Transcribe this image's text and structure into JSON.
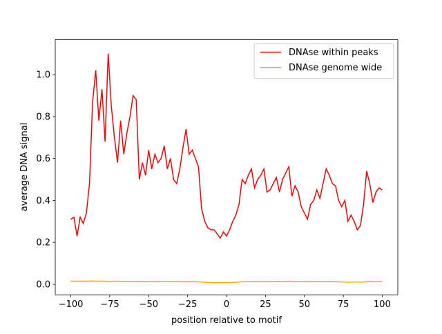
{
  "chart_data": {
    "type": "line",
    "xlabel": "position relative to motif",
    "ylabel": "average DNA signal",
    "x": [
      -100,
      -98,
      -96,
      -94,
      -92,
      -90,
      -88,
      -86,
      -84,
      -82,
      -80,
      -78,
      -76,
      -74,
      -72,
      -70,
      -68,
      -66,
      -64,
      -62,
      -60,
      -58,
      -56,
      -54,
      -52,
      -50,
      -48,
      -46,
      -44,
      -42,
      -40,
      -38,
      -36,
      -34,
      -32,
      -30,
      -28,
      -26,
      -24,
      -22,
      -20,
      -18,
      -16,
      -14,
      -12,
      -10,
      -8,
      -6,
      -4,
      -2,
      0,
      2,
      4,
      6,
      8,
      10,
      12,
      14,
      16,
      18,
      20,
      22,
      24,
      26,
      28,
      30,
      32,
      34,
      36,
      38,
      40,
      42,
      44,
      46,
      48,
      50,
      52,
      54,
      56,
      58,
      60,
      62,
      64,
      66,
      68,
      70,
      72,
      74,
      76,
      78,
      80,
      82,
      84,
      86,
      88,
      90,
      92,
      94,
      96,
      98,
      100
    ],
    "series": [
      {
        "name": "DNAse within peaks",
        "color": "#ff0000",
        "values": [
          0.31,
          0.32,
          0.23,
          0.32,
          0.29,
          0.34,
          0.48,
          0.87,
          1.02,
          0.78,
          0.93,
          0.68,
          1.1,
          0.85,
          0.7,
          0.58,
          0.78,
          0.62,
          0.72,
          0.8,
          0.9,
          0.88,
          0.5,
          0.58,
          0.52,
          0.64,
          0.55,
          0.62,
          0.58,
          0.6,
          0.66,
          0.55,
          0.6,
          0.5,
          0.48,
          0.55,
          0.65,
          0.74,
          0.62,
          0.64,
          0.6,
          0.56,
          0.36,
          0.3,
          0.27,
          0.26,
          0.26,
          0.24,
          0.22,
          0.25,
          0.23,
          0.26,
          0.3,
          0.33,
          0.38,
          0.5,
          0.48,
          0.52,
          0.55,
          0.46,
          0.5,
          0.52,
          0.55,
          0.44,
          0.45,
          0.48,
          0.51,
          0.44,
          0.5,
          0.53,
          0.56,
          0.42,
          0.47,
          0.44,
          0.37,
          0.34,
          0.31,
          0.38,
          0.4,
          0.45,
          0.41,
          0.48,
          0.55,
          0.52,
          0.48,
          0.47,
          0.4,
          0.37,
          0.4,
          0.3,
          0.33,
          0.3,
          0.26,
          0.28,
          0.38,
          0.54,
          0.48,
          0.39,
          0.44,
          0.46,
          0.45
        ]
      },
      {
        "name": "DNAse genome wide",
        "color": "#ffa500",
        "values": [
          0.015,
          0.015,
          0.015,
          0.015,
          0.015,
          0.015,
          0.015,
          0.016,
          0.015,
          0.015,
          0.015,
          0.015,
          0.014,
          0.014,
          0.015,
          0.015,
          0.014,
          0.014,
          0.014,
          0.014,
          0.014,
          0.014,
          0.014,
          0.014,
          0.014,
          0.014,
          0.013,
          0.013,
          0.014,
          0.013,
          0.013,
          0.013,
          0.013,
          0.013,
          0.013,
          0.013,
          0.012,
          0.012,
          0.013,
          0.013,
          0.012,
          0.012,
          0.011,
          0.01,
          0.009,
          0.008,
          0.008,
          0.008,
          0.008,
          0.008,
          0.008,
          0.008,
          0.009,
          0.01,
          0.011,
          0.012,
          0.013,
          0.013,
          0.014,
          0.014,
          0.014,
          0.013,
          0.013,
          0.014,
          0.014,
          0.013,
          0.014,
          0.014,
          0.013,
          0.014,
          0.015,
          0.014,
          0.014,
          0.014,
          0.013,
          0.014,
          0.014,
          0.013,
          0.013,
          0.014,
          0.014,
          0.013,
          0.014,
          0.014,
          0.013,
          0.013,
          0.012,
          0.011,
          0.011,
          0.01,
          0.01,
          0.011,
          0.011,
          0.01,
          0.011,
          0.013,
          0.014,
          0.013,
          0.013,
          0.013,
          0.013
        ]
      }
    ],
    "xlim": [
      -110,
      110
    ],
    "xticks": [
      {
        "value": -100,
        "label": "−100"
      },
      {
        "value": -75,
        "label": "−75"
      },
      {
        "value": -50,
        "label": "−50"
      },
      {
        "value": -25,
        "label": "−25"
      },
      0,
      25,
      50,
      75,
      100
    ],
    "ylim": [
      -0.05,
      1.166
    ],
    "yticks": [
      {
        "value": 0,
        "label": "0.0"
      },
      0.2,
      0.4,
      0.6,
      0.8,
      {
        "value": 1,
        "label": "1.0"
      }
    ],
    "legend": "upper right"
  }
}
